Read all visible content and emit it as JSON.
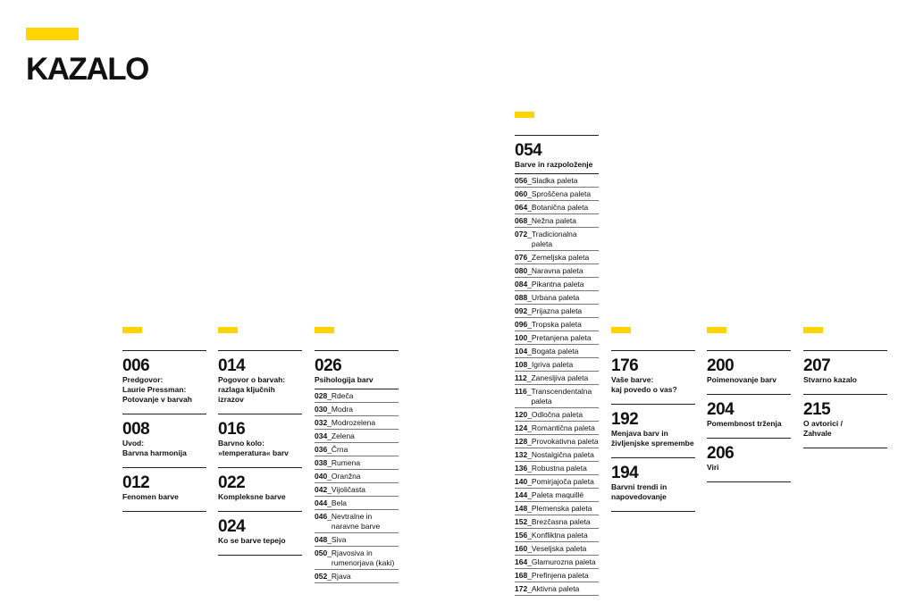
{
  "title": "KAZALO",
  "columns": [
    {
      "entries": [
        {
          "num": "006",
          "label": "Predgovor:\nLaurie Pressman:\nPotovanje v barvah"
        },
        {
          "num": "008",
          "label": "Uvod:\nBarvna harmonija"
        },
        {
          "num": "012",
          "label": "Fenomen barve"
        }
      ]
    },
    {
      "entries": [
        {
          "num": "014",
          "label": "Pogovor o barvah:\nrazlaga ključnih izrazov"
        },
        {
          "num": "016",
          "label": "Barvno kolo:\n»temperatura« barv"
        },
        {
          "num": "022",
          "label": "Kompleksne barve"
        },
        {
          "num": "024",
          "label": "Ko se barve tepejo"
        }
      ]
    },
    {
      "entries": [
        {
          "num": "026",
          "label": "Psihologija barv",
          "subs": [
            {
              "n": "028",
              "t": "Rdeča"
            },
            {
              "n": "030",
              "t": "Modra"
            },
            {
              "n": "032",
              "t": "Modrozelena"
            },
            {
              "n": "034",
              "t": "Zelena"
            },
            {
              "n": "036",
              "t": "Črna"
            },
            {
              "n": "038",
              "t": "Rumena"
            },
            {
              "n": "040",
              "t": "Oranžna"
            },
            {
              "n": "042",
              "t": "Vijoličasta"
            },
            {
              "n": "044",
              "t": "Bela"
            },
            {
              "n": "046",
              "t": "Nevtralne in\nnaravne barve"
            },
            {
              "n": "048",
              "t": "Siva"
            },
            {
              "n": "050",
              "t": "Rjavosiva in\nrumenorjava (kaki)"
            },
            {
              "n": "052",
              "t": "Rjava"
            }
          ]
        }
      ]
    },
    {
      "entries": [
        {
          "num": "054",
          "label": "Barve in razpoloženje",
          "subs": [
            {
              "n": "056",
              "t": "Sladka paleta"
            },
            {
              "n": "060",
              "t": "Sproščena paleta"
            },
            {
              "n": "064",
              "t": "Botanična paleta"
            },
            {
              "n": "068",
              "t": "Nežna paleta"
            },
            {
              "n": "072",
              "t": "Tradicionalna paleta"
            },
            {
              "n": "076",
              "t": "Zemeljska paleta"
            },
            {
              "n": "080",
              "t": "Naravna paleta"
            },
            {
              "n": "084",
              "t": "Pikantna paleta"
            },
            {
              "n": "088",
              "t": "Urbana paleta"
            },
            {
              "n": "092",
              "t": "Prijazna paleta"
            },
            {
              "n": "096",
              "t": "Tropska paleta"
            },
            {
              "n": "100",
              "t": "Pretanjena paleta"
            },
            {
              "n": "104",
              "t": "Bogata paleta"
            },
            {
              "n": "108",
              "t": "Igriva paleta"
            },
            {
              "n": "112",
              "t": "Zanesljiva paleta"
            },
            {
              "n": "116",
              "t": "Transcendentalna\npaleta"
            },
            {
              "n": "120",
              "t": "Odločna paleta"
            },
            {
              "n": "124",
              "t": "Romantična paleta"
            },
            {
              "n": "128",
              "t": "Provokativna paleta"
            },
            {
              "n": "132",
              "t": "Nostalgična paleta"
            },
            {
              "n": "136",
              "t": "Robustna paleta"
            },
            {
              "n": "140",
              "t": "Pomirjajoča paleta"
            },
            {
              "n": "144",
              "t": "Paleta maquillé"
            },
            {
              "n": "148",
              "t": "Plemenska paleta"
            },
            {
              "n": "152",
              "t": "Brezčasna paleta"
            },
            {
              "n": "156",
              "t": "Konfliktna paleta"
            },
            {
              "n": "160",
              "t": "Veseljska paleta"
            },
            {
              "n": "164",
              "t": "Glamurozna paleta"
            },
            {
              "n": "168",
              "t": "Prefinjena paleta"
            },
            {
              "n": "172",
              "t": "Aktivna paleta"
            }
          ]
        }
      ]
    },
    {
      "entries": [
        {
          "num": "176",
          "label": "Vaše barve:\nkaj povedo o vas?"
        },
        {
          "num": "192",
          "label": "Menjava barv in\nživljenjske spremembe"
        },
        {
          "num": "194",
          "label": "Barvni trendi in\nnapovedovanje"
        }
      ]
    },
    {
      "entries": [
        {
          "num": "200",
          "label": "Poimenovanje barv"
        },
        {
          "num": "204",
          "label": "Pomembnost trženja"
        },
        {
          "num": "206",
          "label": "Viri"
        }
      ]
    },
    {
      "entries": [
        {
          "num": "207",
          "label": "Stvarno kazalo"
        },
        {
          "num": "215",
          "label": "O avtorici /\nZahvale"
        }
      ]
    }
  ]
}
